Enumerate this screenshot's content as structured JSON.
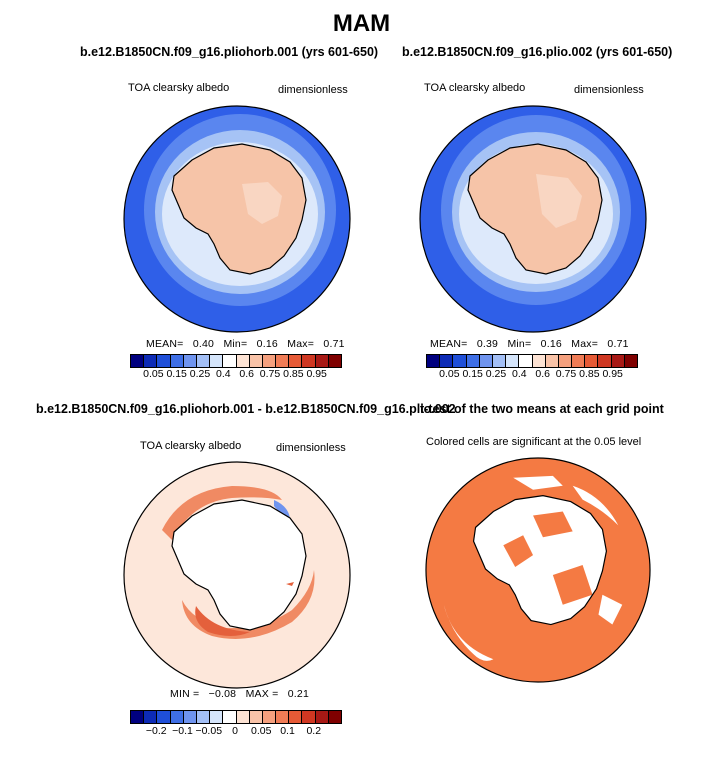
{
  "figure_title": "MAM",
  "panels": {
    "p1": {
      "title": "b.e12.B1850CN.f09_g16.pliohorb.001 (yrs 601-650)",
      "variable": "TOA clearsky albedo",
      "units": "dimensionless",
      "stats": {
        "mean_label": "MEAN=",
        "mean": "0.40",
        "min_label": "Min=",
        "min": "0.16",
        "max_label": "Max=",
        "max": "0.71"
      }
    },
    "p2": {
      "title": "b.e12.B1850CN.f09_g16.plio.002 (yrs 601-650)",
      "variable": "TOA clearsky albedo",
      "units": "dimensionless",
      "stats": {
        "mean_label": "MEAN=",
        "mean": "0.39",
        "min_label": "Min=",
        "min": "0.16",
        "max_label": "Max=",
        "max": "0.71"
      }
    },
    "p3": {
      "title": "b.e12.B1850CN.f09_g16.pliohorb.001 - b.e12.B1850CN.f09_g16.plio.002",
      "variable": "TOA clearsky albedo",
      "units": "dimensionless",
      "stats": {
        "min_label": "MIN =",
        "min": "−0.08",
        "max_label": "MAX =",
        "max": "0.21"
      }
    },
    "p4": {
      "title": "t-test of the two means at each grid point",
      "subtitle": "Colored cells are significant at the 0.05 level"
    }
  },
  "colorbar_abs": {
    "colors": [
      "#00007f",
      "#0d2bb6",
      "#1f4fd8",
      "#3f6fe6",
      "#6f94ef",
      "#a3bff6",
      "#d5e5fb",
      "#ffffff",
      "#fde3d4",
      "#f9c3a8",
      "#f5a07e",
      "#f07c56",
      "#e65a36",
      "#cf3722",
      "#a81915",
      "#7f0000"
    ],
    "labels": [
      "0.05",
      "0.15",
      "0.25",
      "0.4",
      "0.6",
      "0.75",
      "0.85",
      "0.95"
    ]
  },
  "colorbar_diff": {
    "colors": [
      "#00007f",
      "#0d2bb6",
      "#1f4fd8",
      "#3f6fe6",
      "#6f94ef",
      "#a3bff6",
      "#d5e5fb",
      "#ffffff",
      "#fde3d4",
      "#f9c3a8",
      "#f5a07e",
      "#f07c56",
      "#e65a36",
      "#cf3722",
      "#a81915",
      "#7f0000"
    ],
    "labels": [
      "−0.2",
      "−0.1",
      "−0.05",
      "0",
      "0.05",
      "0.1",
      "0.2"
    ]
  },
  "colors": {
    "ocean_blue": "#2f5fe8",
    "ocean_mid": "#5a86ef",
    "ocean_light": "#a6c3f5",
    "ice_edge": "#dde9fb",
    "land": "#f6c4a8",
    "land_light": "#f9d6c2",
    "diff_bg": "#fde7da",
    "diff_pos": "#f08a63",
    "diff_strong": "#e4603c",
    "diff_neg": "#6f94ef",
    "ttest": "#f47a43"
  }
}
